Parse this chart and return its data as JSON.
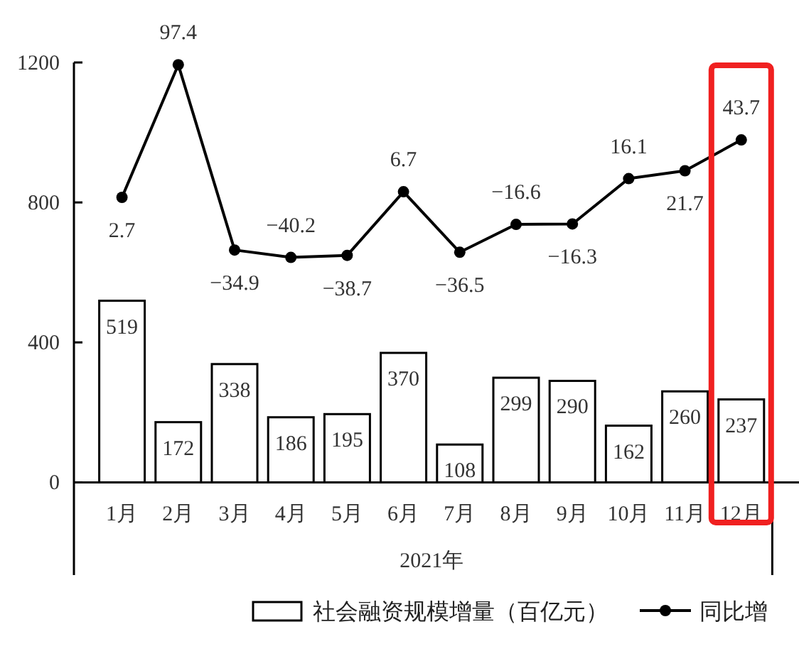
{
  "chart_data": {
    "type": "bar",
    "categories": [
      "1月",
      "2月",
      "3月",
      "4月",
      "5月",
      "6月",
      "7月",
      "8月",
      "9月",
      "10月",
      "11月",
      "12月"
    ],
    "xlabel": "2021年",
    "series": [
      {
        "name": "社会融资规模增量（百亿元）",
        "type": "bar",
        "color": "#ffffff",
        "values": [
          519,
          172,
          338,
          186,
          195,
          370,
          108,
          299,
          290,
          162,
          260,
          237
        ]
      },
      {
        "name": "同比增",
        "type": "line",
        "axis": "y2",
        "color": "#000000",
        "values": [
          2.7,
          97.4,
          -34.9,
          -40.2,
          -38.7,
          6.7,
          -36.5,
          -16.6,
          -16.3,
          16.1,
          21.7,
          43.7
        ]
      }
    ],
    "ylim": [
      -265,
      1200
    ],
    "yticks": [
      0,
      400,
      800,
      1200
    ],
    "y2lim": [
      -267,
      99
    ],
    "data_labels": true,
    "marker": "circle",
    "legend": "bottom",
    "grid": false
  }
}
